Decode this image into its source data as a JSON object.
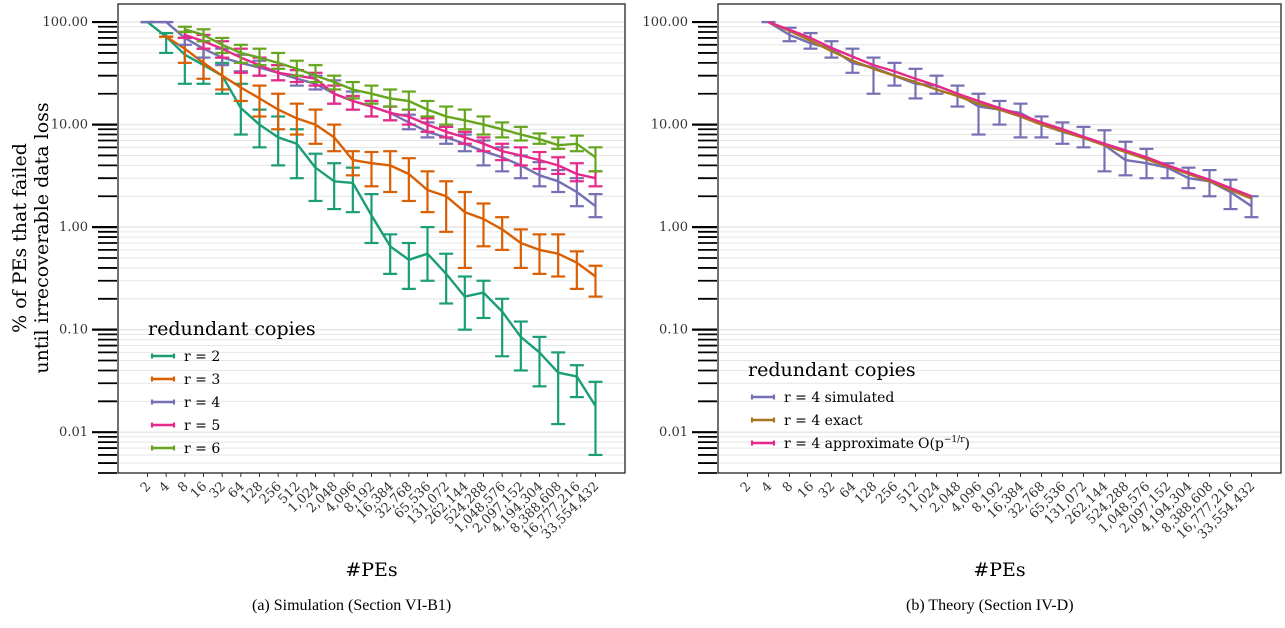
{
  "chart_data": [
    {
      "type": "line",
      "caption": "(a) Simulation (Section VI-B1)",
      "xlabel": "#PEs",
      "ylabel_lines": [
        "% of PEs that failed",
        "until irrecoverable data loss"
      ],
      "y_scale": "log",
      "ylim": [
        0.004,
        150
      ],
      "y_ticks": [
        "100.00",
        "10.00",
        "1.00",
        "0.10",
        "0.01"
      ],
      "x_ticks": [
        "2",
        "4",
        "8",
        "16",
        "32",
        "64",
        "128",
        "256",
        "512",
        "1,024",
        "2,048",
        "4,096",
        "8,192",
        "16,384",
        "32,768",
        "65,536",
        "131,072",
        "262,144",
        "524,288",
        "1,048,576",
        "2,097,152",
        "4,194,304",
        "8,388,608",
        "16,777,216",
        "33,554,432"
      ],
      "grid": true,
      "legend_title": "redundant copies",
      "legend_position": "bottom-left",
      "series": [
        {
          "name": "r = 2",
          "color": "#1b9e77",
          "values": [
            100,
            72,
            48,
            38,
            30,
            14.5,
            10,
            7.5,
            6.5,
            3.8,
            2.8,
            2.7,
            1.3,
            0.65,
            0.48,
            0.55,
            0.35,
            0.21,
            0.23,
            0.15,
            0.085,
            0.06,
            0.038,
            0.035,
            0.018
          ],
          "lo": [
            100,
            50,
            25,
            25,
            20,
            8,
            6,
            4,
            3,
            1.8,
            1.5,
            1.4,
            0.7,
            0.35,
            0.25,
            0.3,
            0.18,
            0.1,
            0.13,
            0.055,
            0.04,
            0.028,
            0.012,
            0.022,
            0.006
          ],
          "hi": [
            100,
            78,
            70,
            55,
            40,
            25,
            14,
            12,
            9,
            5.2,
            4.2,
            3.8,
            2.1,
            0.85,
            0.7,
            1.0,
            0.55,
            0.33,
            0.3,
            0.2,
            0.12,
            0.085,
            0.06,
            0.045,
            0.031
          ]
        },
        {
          "name": "r = 3",
          "color": "#d95f02",
          "values": [
            null,
            72,
            55,
            40,
            30,
            23,
            18,
            14,
            11.5,
            10,
            7.5,
            4.5,
            4.2,
            4.0,
            3.3,
            2.3,
            2.0,
            1.4,
            1.2,
            0.95,
            0.7,
            0.6,
            0.55,
            0.45,
            0.33
          ],
          "lo": [
            null,
            72,
            40,
            28,
            22,
            17,
            12,
            9,
            8,
            6.5,
            5.5,
            3.2,
            2.5,
            2.2,
            1.8,
            1.4,
            0.9,
            0.4,
            0.65,
            0.6,
            0.4,
            0.35,
            0.33,
            0.25,
            0.21
          ],
          "hi": [
            null,
            72,
            70,
            55,
            45,
            33,
            24,
            20,
            16,
            14,
            10,
            5.5,
            5.4,
            5.5,
            4.7,
            3.5,
            2.8,
            2.2,
            1.7,
            1.25,
            0.95,
            0.85,
            0.85,
            0.58,
            0.42
          ]
        },
        {
          "name": "r = 4",
          "color": "#7570b3",
          "values": [
            100,
            100,
            70,
            55,
            45,
            40,
            36,
            32,
            28,
            25,
            20,
            17,
            15,
            13,
            10.5,
            8.5,
            7.5,
            6.5,
            5.5,
            4.8,
            4.0,
            3.2,
            2.8,
            2.2,
            1.6
          ],
          "lo": [
            100,
            100,
            60,
            45,
            38,
            33,
            30,
            27,
            24,
            22,
            16,
            14,
            12,
            11,
            9,
            7.5,
            6.5,
            5.5,
            4.0,
            3.5,
            3.0,
            2.5,
            2.2,
            1.6,
            1.25
          ],
          "hi": [
            100,
            100,
            80,
            65,
            55,
            48,
            42,
            38,
            34,
            30,
            27,
            21,
            17,
            15,
            12.5,
            10.5,
            9.5,
            8,
            7,
            6,
            5,
            4.3,
            3.6,
            3.0,
            2.1
          ]
        },
        {
          "name": "r = 5",
          "color": "#e7298a",
          "values": [
            null,
            null,
            75,
            65,
            55,
            45,
            38,
            32,
            30,
            28,
            20,
            17,
            15,
            13,
            12,
            10,
            8.5,
            7.5,
            6.5,
            5.5,
            5.0,
            4.5,
            4.0,
            3.3,
            3.0
          ],
          "lo": [
            null,
            null,
            70,
            55,
            45,
            32,
            30,
            27,
            26,
            24,
            16,
            14,
            12,
            11,
            10,
            8.5,
            7.5,
            6.5,
            5.5,
            4.5,
            4.0,
            3.7,
            3.3,
            2.8,
            2.5
          ],
          "hi": [
            null,
            null,
            80,
            75,
            65,
            55,
            45,
            38,
            34,
            32,
            24,
            19,
            17,
            15,
            14,
            11.5,
            9.5,
            8.5,
            7.5,
            6.5,
            6.0,
            5.4,
            4.8,
            4.2,
            3.5
          ]
        },
        {
          "name": "r = 6",
          "color": "#66a61e",
          "values": [
            null,
            null,
            85,
            75,
            60,
            50,
            45,
            40,
            35,
            30,
            26,
            22,
            20,
            18,
            17,
            14,
            12,
            11,
            10,
            9,
            8,
            7.2,
            6.3,
            6.5,
            4.8
          ],
          "lo": [
            null,
            null,
            80,
            65,
            50,
            40,
            38,
            35,
            30,
            26,
            22,
            18,
            16,
            15,
            14,
            12,
            10,
            9,
            8,
            7.5,
            7.0,
            6.5,
            5.8,
            5.5,
            3.5
          ],
          "hi": [
            null,
            null,
            90,
            85,
            70,
            60,
            55,
            50,
            42,
            38,
            30,
            26,
            24,
            22,
            21,
            17,
            15,
            14,
            12,
            10.5,
            9.5,
            8.2,
            7.5,
            7.8,
            6.0
          ]
        }
      ]
    },
    {
      "type": "line",
      "caption": "(b) Theory (Section IV-D)",
      "xlabel": "#PEs",
      "y_scale": "log",
      "ylim": [
        0.004,
        150
      ],
      "y_ticks": [
        "100.00",
        "10.00",
        "1.00",
        "0.10",
        "0.01"
      ],
      "x_ticks": [
        "2",
        "4",
        "8",
        "16",
        "32",
        "64",
        "128",
        "256",
        "512",
        "1,024",
        "2,048",
        "4,096",
        "8,192",
        "16,384",
        "32,768",
        "65,536",
        "131,072",
        "262,144",
        "524,288",
        "1,048,576",
        "2,097,152",
        "4,194,304",
        "8,388,608",
        "16,777,216",
        "33,554,432"
      ],
      "grid": true,
      "legend_title": "redundant copies",
      "legend_position": "bottom-left",
      "series": [
        {
          "name": "r = 4 simulated",
          "color": "#7570b3",
          "values": [
            null,
            100,
            75,
            62,
            55,
            40,
            36,
            30,
            25,
            24,
            20,
            15,
            14,
            13,
            10,
            8.5,
            7.5,
            6.3,
            4.5,
            4.2,
            3.8,
            3.0,
            2.8,
            2.2,
            1.6
          ],
          "lo": [
            null,
            100,
            65,
            55,
            45,
            32,
            20,
            24,
            18,
            20,
            15,
            8,
            10,
            7.5,
            7.5,
            6.5,
            6.0,
            3.5,
            3.2,
            3.0,
            3.0,
            2.4,
            2.0,
            1.5,
            1.25
          ],
          "hi": [
            null,
            100,
            88,
            78,
            65,
            55,
            45,
            40,
            35,
            30,
            24,
            20,
            17,
            16,
            12,
            10.5,
            9.5,
            8.8,
            6.8,
            5.8,
            4.2,
            3.8,
            3.6,
            2.9,
            2.0
          ]
        },
        {
          "name": "r = 4 exact",
          "color": "#a6761d",
          "values": [
            null,
            100,
            82,
            66,
            52,
            42,
            35,
            30,
            26,
            22,
            19,
            16,
            14,
            12,
            10,
            8.6,
            7.4,
            6.3,
            5.4,
            4.6,
            3.9,
            3.3,
            2.8,
            2.3,
            1.9
          ]
        },
        {
          "name": "r = 4 approximate",
          "color": "#e7298a",
          "values": [
            null,
            100,
            84,
            70,
            56,
            46,
            38,
            33,
            28,
            24,
            20,
            17,
            14.5,
            12.5,
            10.5,
            9.0,
            7.6,
            6.5,
            5.6,
            4.8,
            4.0,
            3.4,
            2.9,
            2.4,
            2.0
          ]
        }
      ]
    }
  ]
}
